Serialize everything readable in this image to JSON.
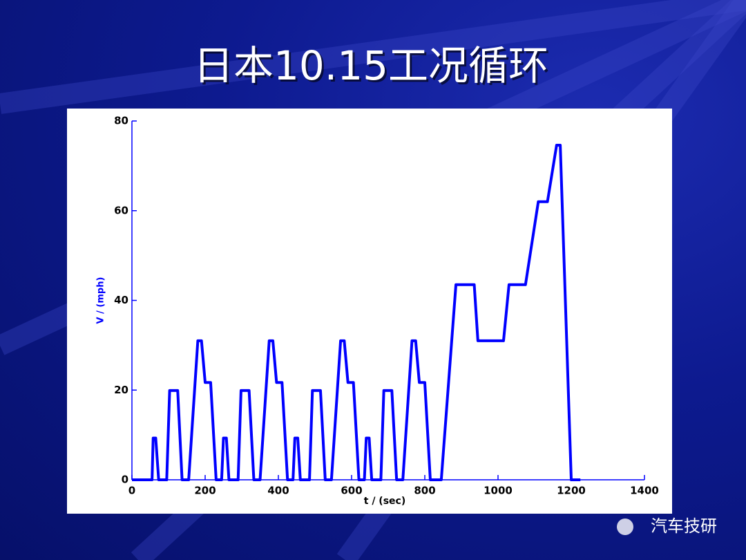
{
  "chart_data": {
    "type": "line",
    "title": "日本10.15工况循环",
    "x_label": "t / (sec)",
    "y_label": "V / (mph)",
    "xlim": [
      0,
      1400
    ],
    "ylim": [
      0,
      80
    ],
    "xticks": [
      0,
      200,
      400,
      600,
      800,
      1000,
      1200,
      1400
    ],
    "yticks": [
      0,
      20,
      40,
      60,
      80
    ],
    "color": "#0000ff",
    "x": [
      0,
      55,
      58,
      65,
      73,
      95,
      103,
      125,
      137,
      155,
      180,
      190,
      200,
      215,
      230,
      245,
      250,
      258,
      265,
      290,
      298,
      320,
      333,
      350,
      375,
      385,
      395,
      410,
      425,
      440,
      445,
      453,
      460,
      485,
      493,
      515,
      528,
      545,
      570,
      580,
      590,
      605,
      620,
      635,
      640,
      648,
      655,
      680,
      688,
      710,
      723,
      740,
      765,
      775,
      785,
      800,
      815,
      845,
      885,
      935,
      945,
      1015,
      1030,
      1075,
      1110,
      1135,
      1160,
      1170,
      1200,
      1225
    ],
    "values": [
      0,
      0,
      9.3,
      9.3,
      0,
      0,
      19.9,
      19.9,
      0,
      0,
      31,
      31,
      21.7,
      21.7,
      0,
      0,
      9.3,
      9.3,
      0,
      0,
      19.9,
      19.9,
      0,
      0,
      31,
      31,
      21.7,
      21.7,
      0,
      0,
      9.3,
      9.3,
      0,
      0,
      19.9,
      19.9,
      0,
      0,
      31,
      31,
      21.7,
      21.7,
      0,
      0,
      9.3,
      9.3,
      0,
      0,
      19.9,
      19.9,
      0,
      0,
      31,
      31,
      21.7,
      21.7,
      0,
      0,
      43.5,
      43.5,
      31,
      31,
      43.5,
      43.5,
      62,
      62,
      74.6,
      74.6,
      0,
      0
    ]
  },
  "watermark": "汽车技研"
}
